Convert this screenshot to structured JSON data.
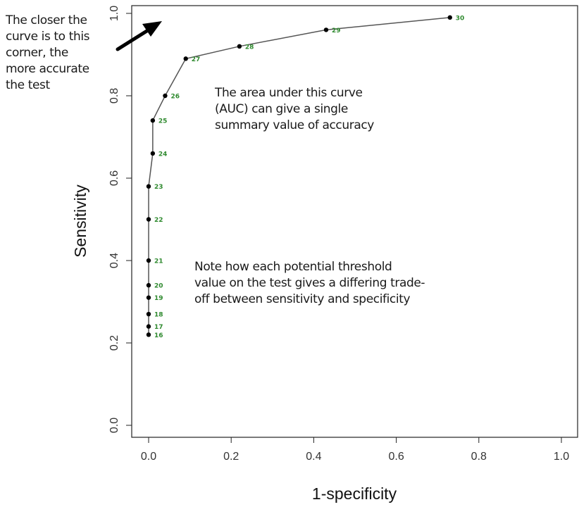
{
  "chart_data": {
    "type": "line",
    "xlabel": "1-specificity",
    "ylabel": "Sensitivity",
    "xlim": [
      0,
      1
    ],
    "ylim": [
      0,
      1
    ],
    "xticks": [
      "0.0",
      "0.2",
      "0.4",
      "0.6",
      "0.8",
      "1.0"
    ],
    "yticks": [
      "0.0",
      "0.2",
      "0.4",
      "0.6",
      "0.8",
      "1.0"
    ],
    "grid": false,
    "line_color": "#555555",
    "marker_color": "#000000",
    "label_color": "#2f8a2f",
    "points": [
      {
        "label": "16",
        "x": 0.0,
        "y": 0.22
      },
      {
        "label": "17",
        "x": 0.0,
        "y": 0.24
      },
      {
        "label": "18",
        "x": 0.0,
        "y": 0.27
      },
      {
        "label": "19",
        "x": 0.0,
        "y": 0.31
      },
      {
        "label": "20",
        "x": 0.0,
        "y": 0.34
      },
      {
        "label": "21",
        "x": 0.0,
        "y": 0.4
      },
      {
        "label": "22",
        "x": 0.0,
        "y": 0.5
      },
      {
        "label": "23",
        "x": 0.0,
        "y": 0.58
      },
      {
        "label": "24",
        "x": 0.01,
        "y": 0.66
      },
      {
        "label": "25",
        "x": 0.01,
        "y": 0.74
      },
      {
        "label": "26",
        "x": 0.04,
        "y": 0.8
      },
      {
        "label": "27",
        "x": 0.09,
        "y": 0.89
      },
      {
        "label": "28",
        "x": 0.22,
        "y": 0.92
      },
      {
        "label": "29",
        "x": 0.43,
        "y": 0.96
      },
      {
        "label": "30",
        "x": 0.73,
        "y": 0.99
      }
    ]
  },
  "annotations": {
    "corner": "The closer the\ncurve is to this\ncorner, the\nmore accurate\nthe test",
    "auc": "The area under this curve\n(AUC) can give a single\nsummary value of accuracy",
    "threshold": "Note how each potential threshold\nvalue on the test gives a differing  trade-\noff between sensitivity and specificity"
  }
}
